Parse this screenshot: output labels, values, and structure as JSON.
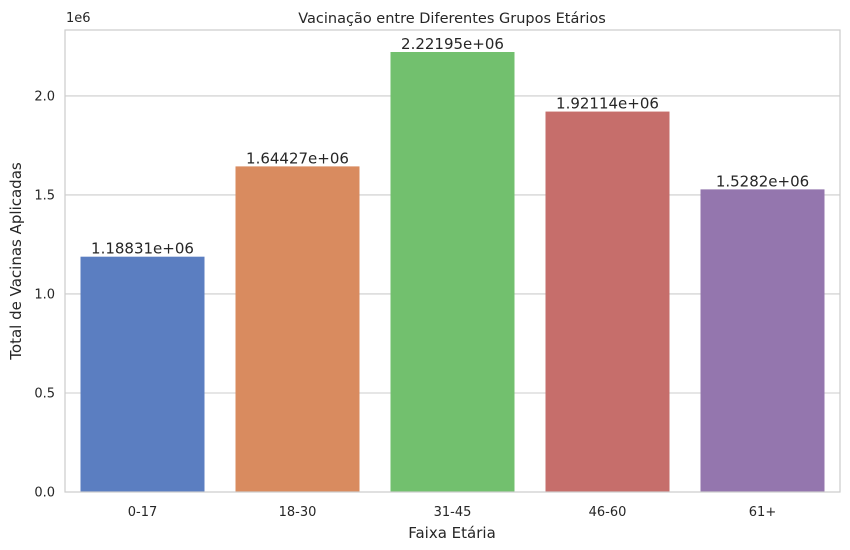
{
  "chart_data": {
    "type": "bar",
    "title": "Vacinação entre Diferentes Grupos Etários",
    "xlabel": "Faixa Etária",
    "ylabel": "Total de Vacinas Aplicadas",
    "y_offset_label": "1e6",
    "categories": [
      "0-17",
      "18-30",
      "31-45",
      "46-60",
      "61+"
    ],
    "values": [
      1188310,
      1644270,
      2221950,
      1921140,
      1528200
    ],
    "data_labels": [
      "1.18831e+06",
      "1.64427e+06",
      "2.22195e+06",
      "1.92114e+06",
      "1.5282e+06"
    ],
    "colors": [
      "#5b7ec1",
      "#d98b5f",
      "#72c06e",
      "#c66e6b",
      "#9476ae"
    ],
    "yticks": [
      0,
      500000,
      1000000,
      1500000,
      2000000
    ],
    "ytick_labels": [
      "0.0",
      "0.5",
      "1.0",
      "1.5",
      "2.0"
    ],
    "ylim": [
      0,
      2333048
    ],
    "grid": "horizontal",
    "legend": "none"
  }
}
